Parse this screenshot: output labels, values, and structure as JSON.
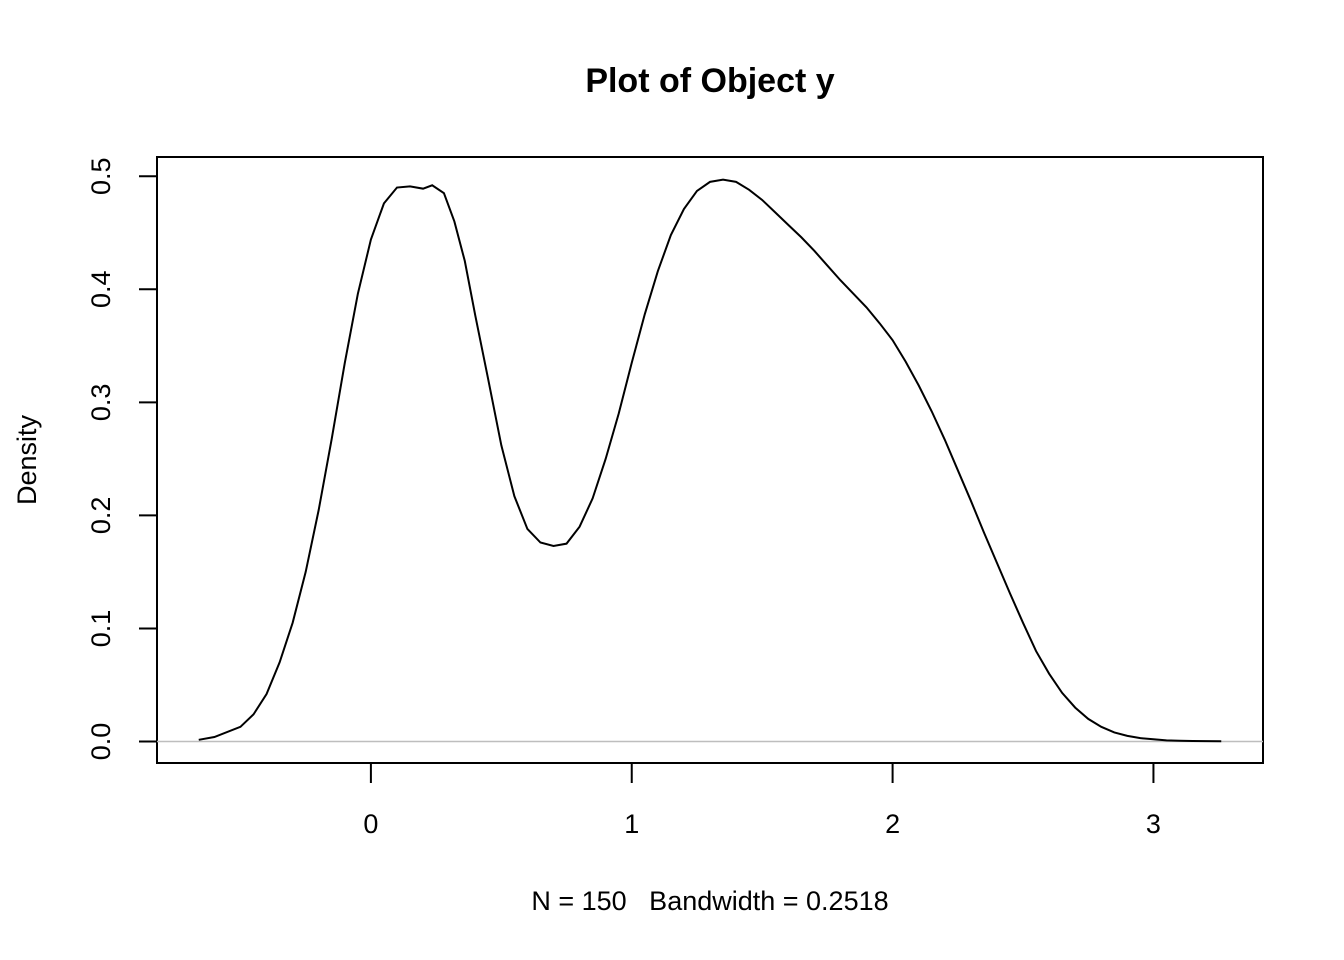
{
  "chart_data": {
    "type": "line",
    "title": "Plot of Object y",
    "xlabel": "N = 150   Bandwidth = 0.2518",
    "ylabel": "Density",
    "xlim": [
      -0.82,
      3.42
    ],
    "ylim": [
      -0.019,
      0.517
    ],
    "x_ticks": [
      0,
      1,
      2,
      3
    ],
    "x_tick_labels": [
      "0",
      "1",
      "2",
      "3"
    ],
    "y_ticks": [
      0.0,
      0.1,
      0.2,
      0.3,
      0.4,
      0.5
    ],
    "y_tick_labels": [
      "0.0",
      "0.1",
      "0.2",
      "0.3",
      "0.4",
      "0.5"
    ],
    "baseline": 0.0,
    "grid": false,
    "line_color": "#000000",
    "baseline_color": "#bebebe",
    "series": [
      {
        "x": [
          -0.66,
          -0.6,
          -0.5,
          -0.45,
          -0.4,
          -0.35,
          -0.3,
          -0.25,
          -0.2,
          -0.15,
          -0.1,
          -0.05,
          0.0,
          0.05,
          0.1,
          0.15,
          0.2,
          0.235,
          0.28,
          0.32,
          0.36,
          0.4,
          0.45,
          0.5,
          0.55,
          0.6,
          0.65,
          0.7,
          0.75,
          0.8,
          0.85,
          0.9,
          0.95,
          1.0,
          1.05,
          1.1,
          1.15,
          1.2,
          1.25,
          1.3,
          1.35,
          1.4,
          1.45,
          1.5,
          1.55,
          1.6,
          1.65,
          1.7,
          1.75,
          1.8,
          1.85,
          1.9,
          1.95,
          2.0,
          2.05,
          2.1,
          2.15,
          2.2,
          2.25,
          2.3,
          2.35,
          2.4,
          2.45,
          2.5,
          2.55,
          2.6,
          2.65,
          2.7,
          2.75,
          2.8,
          2.85,
          2.9,
          2.95,
          3.0,
          3.05,
          3.1,
          3.15,
          3.2,
          3.26
        ],
        "y": [
          0.0015,
          0.004,
          0.013,
          0.024,
          0.042,
          0.07,
          0.105,
          0.15,
          0.205,
          0.268,
          0.335,
          0.396,
          0.444,
          0.476,
          0.49,
          0.491,
          0.489,
          0.492,
          0.485,
          0.46,
          0.425,
          0.377,
          0.32,
          0.262,
          0.217,
          0.188,
          0.176,
          0.173,
          0.175,
          0.19,
          0.215,
          0.25,
          0.29,
          0.335,
          0.378,
          0.416,
          0.448,
          0.471,
          0.487,
          0.495,
          0.497,
          0.495,
          0.488,
          0.479,
          0.468,
          0.457,
          0.446,
          0.434,
          0.421,
          0.408,
          0.396,
          0.384,
          0.37,
          0.355,
          0.336,
          0.315,
          0.292,
          0.267,
          0.24,
          0.213,
          0.185,
          0.158,
          0.131,
          0.105,
          0.08,
          0.06,
          0.043,
          0.03,
          0.02,
          0.013,
          0.008,
          0.005,
          0.003,
          0.002,
          0.001,
          0.0007,
          0.0005,
          0.0003,
          0.0002
        ]
      }
    ]
  }
}
